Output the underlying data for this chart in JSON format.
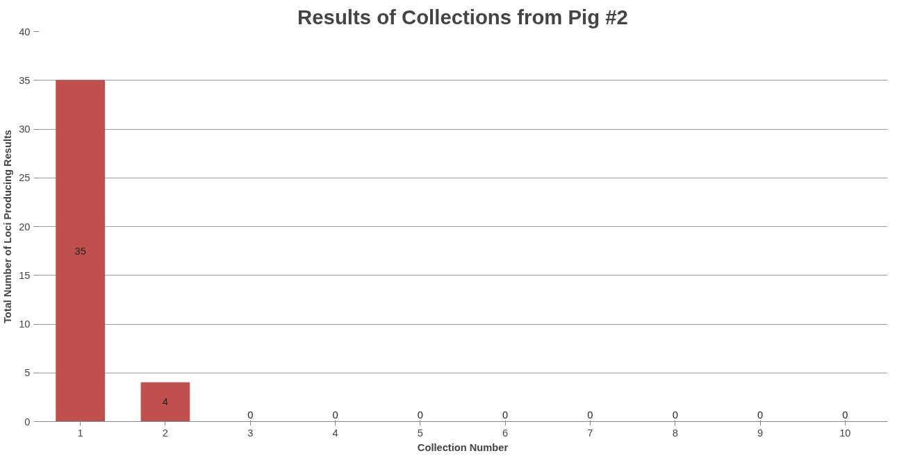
{
  "chart_data": {
    "type": "bar",
    "title": "Results of Collections from Pig #2",
    "xlabel": "Collection Number",
    "ylabel": "Total Number of Loci Producing Results",
    "categories": [
      "1",
      "2",
      "3",
      "4",
      "5",
      "6",
      "7",
      "8",
      "9",
      "10"
    ],
    "values": [
      35,
      4,
      0,
      0,
      0,
      0,
      0,
      0,
      0,
      0
    ],
    "color": "#c0504d",
    "ylim": [
      0,
      40
    ],
    "yticks": [
      0,
      5,
      10,
      15,
      20,
      25,
      30,
      35,
      40
    ],
    "grid": "y",
    "data_labels": true
  }
}
